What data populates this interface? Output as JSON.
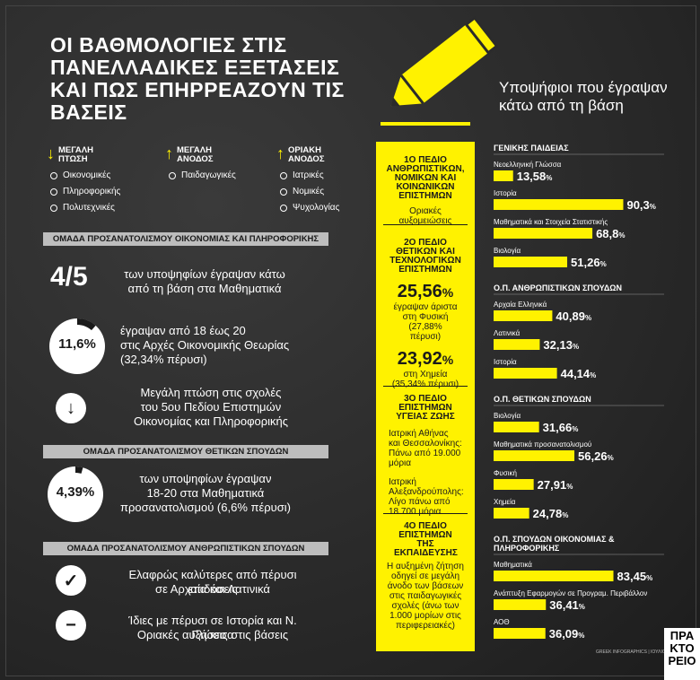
{
  "title": "ΟΙ ΒΑΘΜΟΛΟΓΙΕΣ ΣΤΙΣ ΠΑΝΕΛΛΑΔΙΚΕΣ ΕΞΕΤΑΣΕΙΣ ΚΑΙ ΠΩΣ ΕΠΗΡΡΕΑΖΟΥΝ ΤΙΣ ΒΑΣΕΙΣ",
  "colors": {
    "accent": "#fff200",
    "background": "#2b2b2b",
    "band": "#bdbdbd"
  },
  "legend": {
    "drop": {
      "header": "ΜΕΓΑΛΗ ΠΤΩΣΗ",
      "items": [
        "Οικονομικές",
        "Πληροφορικής",
        "Πολυτεχνικές"
      ]
    },
    "rise": {
      "header": "ΜΕΓΑΛΗ ΑΝΟΔΟΣ",
      "items": [
        "Παιδαγωγικές"
      ]
    },
    "marginal": {
      "header": "ΟΡΙΑΚΗ ΑΝΟΔΟΣ",
      "items": [
        "Ιατρικές",
        "Νομικές",
        "Ψυχολογίας"
      ]
    }
  },
  "econ": {
    "band": "ΟΜΑΔΑ ΠΡΟΣΑΝΑΤΟΛΙΣΜΟΥ ΟΙΚΟΝΟΜΙΑΣ ΚΑΙ ΠΛΗΡΟΦΟΡΙΚΗΣ",
    "fraction": "4/5",
    "fraction_text": "των υποψηφίων έγραψαν κάτω από τη βάση στα Μαθηματικά",
    "pct": "11,6%",
    "pct_value": 11.6,
    "pct_text1": "έγραψαν από 18 έως 20",
    "pct_text2": "στις Αρχές Οικονομικής Θεωρίας",
    "pct_text3": "(32,34% πέρυσι)",
    "drop_text1": "Μεγάλη πτώση στις σχολές",
    "drop_text2": "του 5ου Πεδίου Επιστημών",
    "drop_text3": "Οικονομίας και Πληροφορικής"
  },
  "sci": {
    "band": "ΟΜΑΔΑ ΠΡΟΣΑΝΑΤΟΛΙΣΜΟΥ ΘΕΤΙΚΩΝ ΣΠΟΥΔΩΝ",
    "pct": "4,39%",
    "pct_value": 4.39,
    "text1": "των υποψηφίων έγραψαν",
    "text2": "18-20 στα Μαθηματικά",
    "text3": "προσανατολισμού (6,6% πέρυσι)"
  },
  "hum": {
    "band": "ΟΜΑΔΑ ΠΡΟΣΑΝΑΤΟΛΙΣΜΟΥ ΑΝΘΡΩΠΙΣΤΙΚΩΝ ΣΠΟΥΔΩΝ",
    "check_text1": "Ελαφρώς καλύτερες από πέρυσι επιδόσεις",
    "check_text2": "σε Αρχαία και Λατινικά",
    "minus_text1": "Ίδιες με πέρυσι σε Ιστορία και Ν. Γλώσσα",
    "minus_text2": "Οριακές αυξήσεις στις βάσεις"
  },
  "fields": {
    "f1_title": "1ο ΠΕΔΙΟ ΑΝΘΡΩΠΙΣΤΙΚΩΝ, ΝΟΜΙΚΩΝ ΚΑΙ ΚΟΙΝΩΝΙΚΩΝ ΕΠΙΣΤΗΜΩΝ",
    "f1_text": "Οριακές αυξομειώσεις",
    "f2_title": "2ο ΠΕΔΙΟ ΘΕΤΙΚΩΝ ΚΑΙ ΤΕΧΝΟΛΟΓΙΚΩΝ ΕΠΙΣΤΗΜΩΝ",
    "f2_big1": "25,56",
    "f2_t1": "έγραψαν άριστα στη Φυσική (27,88% πέρυσι)",
    "f2_big2": "23,92",
    "f2_t2": "στη Χημεία (35,34% πέρυσι)",
    "pct_sign": "%",
    "f3_title": "3ο ΠΕΔΙΟ ΕΠΙΣΤΗΜΩΝ ΥΓΕΙΑΣ ΖΩΗΣ",
    "f3_t1": "Ιατρική Αθήνας και Θεσσαλονίκης: Πάνω από 19.000 μόρια",
    "f3_t2": "Ιατρική Αλεξανδρούπολης: Λίγο πάνω από 18.700 μόρια",
    "f4_title": "4ο ΠΕΔΙΟ ΕΠΙΣΤΗΜΩΝ ΤΗΣ ΕΚΠΑΙΔΕΥΣΗΣ",
    "f4_text": "Η αυξημένη ζήτηση οδηγεί σε μεγάλη άνοδο των βάσεων στις παιδαγωγικές σχολές (άνω των 1.000 μορίων στις περιφερειακές)"
  },
  "right_title": "Υποψήφιοι που έγραψαν κάτω από τη βάση",
  "credit": "GREEK INFOGRAPHICS | ΙΟΥΛΙΟΣ 2017",
  "logo": "ΠΡΑ ΚΤΟ ΡΕΙΟ",
  "chart_data": {
    "type": "bar",
    "title": "Υποψήφιοι που έγραψαν κάτω από τη βάση",
    "xlim": [
      0,
      100
    ],
    "groups": [
      {
        "name": "ΓΕΝΙΚΗΣ ΠΑΙΔΕΙΑΣ",
        "categories": [
          "Νεοελληνική Γλώσσα",
          "Ιστορία",
          "Μαθηματικά και Στοιχεία Στατιστικής",
          "Βιολογία"
        ],
        "values": [
          13.58,
          90.3,
          68.8,
          51.26
        ],
        "labels": [
          "13,58",
          "90,3",
          "68,8",
          "51,26"
        ]
      },
      {
        "name": "Ο.Π. ΑΝΘΡΩΠΙΣΤΙΚΩΝ ΣΠΟΥΔΩΝ",
        "categories": [
          "Αρχαία Ελληνικά",
          "Λατινικά",
          "Ιστορία"
        ],
        "values": [
          40.89,
          32.13,
          44.14
        ],
        "labels": [
          "40,89",
          "32,13",
          "44,14"
        ]
      },
      {
        "name": "Ο.Π. ΘΕΤΙΚΩΝ ΣΠΟΥΔΩΝ",
        "categories": [
          "Βιολογία",
          "Μαθηματικά προσανατολισμού",
          "Φυσική",
          "Χημεία"
        ],
        "values": [
          31.66,
          56.26,
          27.91,
          24.78
        ],
        "labels": [
          "31,66",
          "56,26",
          "27,91",
          "24,78"
        ]
      },
      {
        "name": "Ο.Π. ΣΠΟΥΔΩΝ ΟΙΚΟΝΟΜΙΑΣ & ΠΛΗΡΟΦΟΡΙΚΗΣ",
        "categories": [
          "Μαθηματικά",
          "Ανάπτυξη Εφαρμογών σε Προγραμ. Περιβάλλον",
          "ΑΟΘ"
        ],
        "values": [
          83.45,
          36.41,
          36.09
        ],
        "labels": [
          "83,45",
          "36,41",
          "36,09"
        ]
      }
    ]
  }
}
